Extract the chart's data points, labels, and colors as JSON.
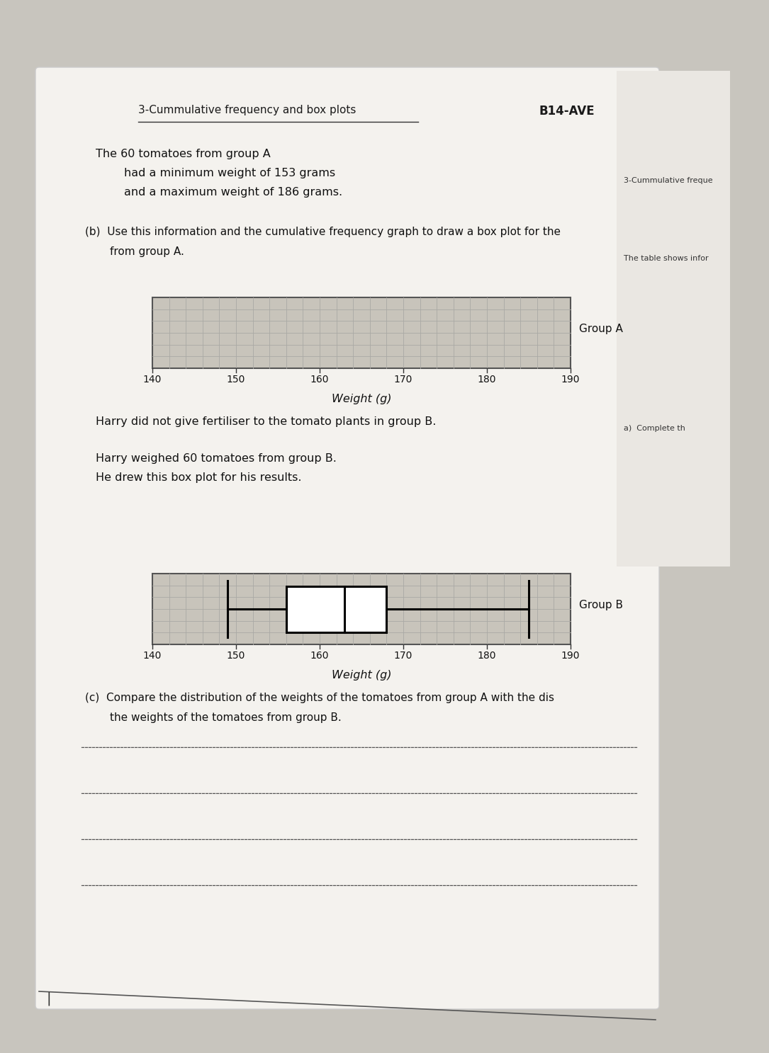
{
  "page_bg": "#e8e6e2",
  "paper_bg": "#f5f3f0",
  "title_text": "3-Cummulative frequency and box plots",
  "header_right": "B14-AVE",
  "text_block1_line1": "The 60 tomatoes from group A",
  "text_block1_line2": "        had a minimum weight of 153 grams",
  "text_block1_line3": "        and a maximum weight of 186 grams.",
  "text_b_line1": "(b)  Use this information and the cumulative frequency graph to draw a box plot for the",
  "text_b_line2": "        from group A.",
  "group_a_label": "Group A",
  "group_b_label": "Group B",
  "xlabel": "Weight (g)",
  "xmin": 140,
  "xmax": 190,
  "xticks": [
    140,
    150,
    160,
    170,
    180,
    190
  ],
  "grid_fill": "#c8c4bb",
  "grid_line_color": "#aaa9a5",
  "grid_border_color": "#555555",
  "text_harry1": "Harry did not give fertiliser to the tomato plants in group B.",
  "text_harry2": "Harry weighed 60 tomatoes from group B.",
  "text_harry3": "He drew this box plot for his results.",
  "text_c_line1": "(c)  Compare the distribution of the weights of the tomatoes from group A with the dis",
  "text_c_line2": "        the weights of the tomatoes from group B.",
  "sidebar_bg": "#e2deda",
  "sidebar_text1": "3-Cummulative freque",
  "sidebar_text2": "The table shows infor",
  "sidebar_text3": "a)  Complete th",
  "boxplot_b_min": 149,
  "boxplot_b_q1": 156,
  "boxplot_b_median": 163,
  "boxplot_b_q3": 168,
  "boxplot_b_max": 185,
  "n_grid_cols": 25,
  "n_grid_rows": 6
}
